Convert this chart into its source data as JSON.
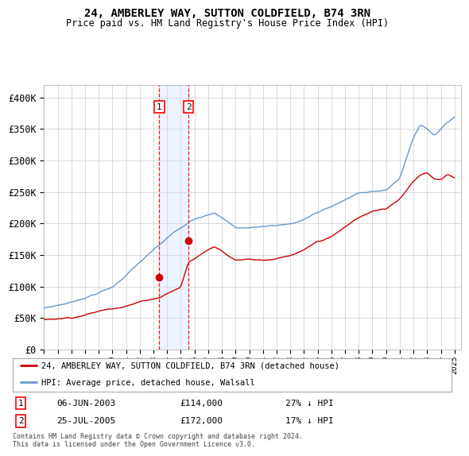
{
  "title1": "24, AMBERLEY WAY, SUTTON COLDFIELD, B74 3RN",
  "title2": "Price paid vs. HM Land Registry's House Price Index (HPI)",
  "ylabel_ticks": [
    "£0",
    "£50K",
    "£100K",
    "£150K",
    "£200K",
    "£250K",
    "£300K",
    "£350K",
    "£400K"
  ],
  "ylabel_values": [
    0,
    50000,
    100000,
    150000,
    200000,
    250000,
    300000,
    350000,
    400000
  ],
  "ylim": [
    0,
    420000
  ],
  "sale1_date": "06-JUN-2003",
  "sale1_price": 114000,
  "sale1_hpi": "27% ↓ HPI",
  "sale1_x": 2003.43,
  "sale2_date": "25-JUL-2005",
  "sale2_price": 172000,
  "sale2_hpi": "17% ↓ HPI",
  "sale2_x": 2005.56,
  "legend_line1": "24, AMBERLEY WAY, SUTTON COLDFIELD, B74 3RN (detached house)",
  "legend_line2": "HPI: Average price, detached house, Walsall",
  "footer": "Contains HM Land Registry data © Crown copyright and database right 2024.\nThis data is licensed under the Open Government Licence v3.0.",
  "line_color_red": "#cc0000",
  "line_color_blue": "#6699cc",
  "background_color": "#ffffff",
  "grid_color": "#cccccc",
  "shade_color": "#cce0ff",
  "xlim_start": 1995,
  "xlim_end": 2025.5
}
